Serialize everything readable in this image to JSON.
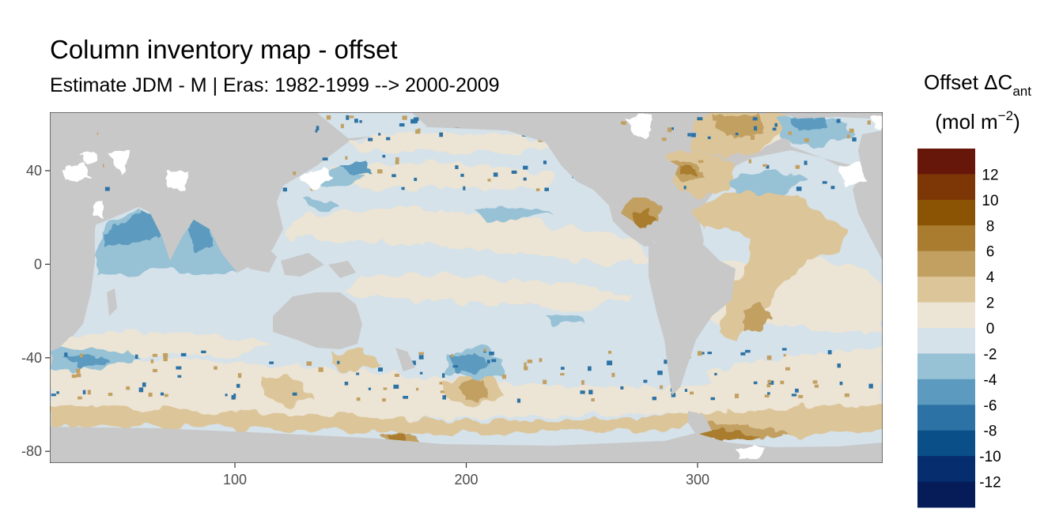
{
  "title": "Column inventory map - offset",
  "subtitle": "Estimate JDM - M | Eras: 1982-1999 --> 2000-2009",
  "legend": {
    "title_main": "Offset ΔC",
    "title_sub": "ant",
    "unit_open": "(mol m",
    "unit_sup": "−2",
    "unit_close": ")",
    "labels": [
      "12",
      "10",
      "8",
      "6",
      "4",
      "2",
      "0",
      "-2",
      "-4",
      "-6",
      "-8",
      "-10",
      "-12"
    ],
    "colors": [
      "#67170a",
      "#7d3606",
      "#8b5405",
      "#a97c2f",
      "#c2a062",
      "#dcc599",
      "#ece4d4",
      "#d5e2ea",
      "#97c1d5",
      "#5c9bbf",
      "#2c72a5",
      "#0b4f88",
      "#062d6e",
      "#051c58"
    ]
  },
  "map": {
    "background_color": "#c8c8c8",
    "water_color": "#d5e2ea",
    "missing_color": "#ffffff"
  },
  "chart_data": {
    "type": "heatmap",
    "title": "Column inventory map - offset",
    "subtitle": "Estimate JDM - M | Eras: 1982-1999 --> 2000-2009",
    "xlabel": "",
    "ylabel": "",
    "xlim": [
      20,
      380
    ],
    "ylim": [
      -85,
      65
    ],
    "x_ticks": [
      "100",
      "200",
      "300"
    ],
    "x_tick_values": [
      100,
      200,
      300
    ],
    "y_ticks": [
      "40",
      "0",
      "-40",
      "-80"
    ],
    "y_tick_values": [
      40,
      0,
      -40,
      -80
    ],
    "colorbar_breaks": [
      -14,
      -12,
      -10,
      -8,
      -6,
      -4,
      -2,
      0,
      2,
      4,
      6,
      8,
      10,
      12,
      14
    ],
    "grid": false,
    "legend_position": "right"
  }
}
